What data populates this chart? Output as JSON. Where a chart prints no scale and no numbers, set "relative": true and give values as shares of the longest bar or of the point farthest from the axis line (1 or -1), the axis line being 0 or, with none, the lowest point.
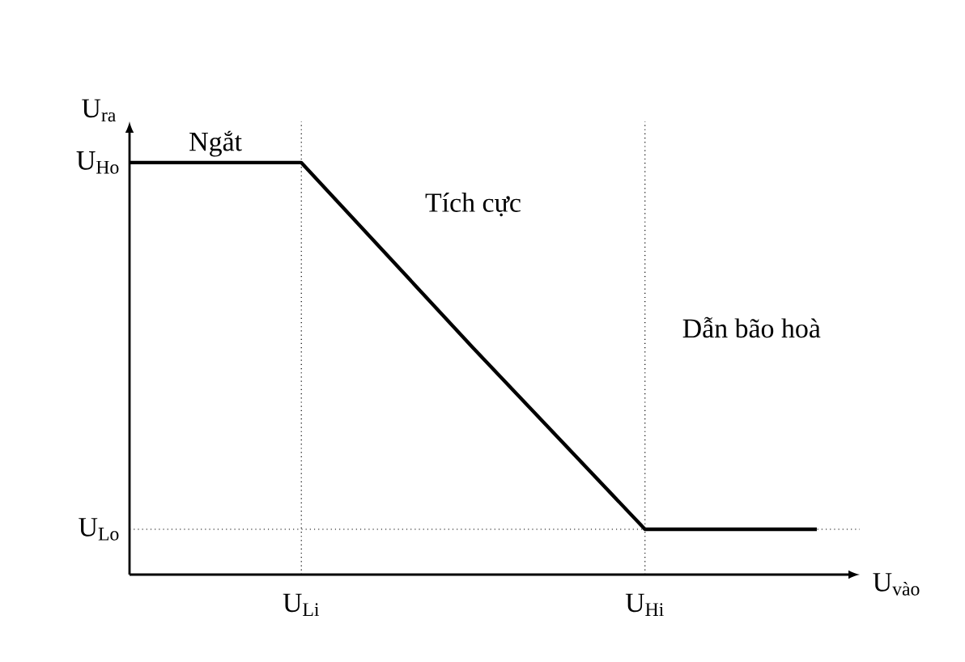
{
  "chart_data": {
    "type": "line",
    "relative": true,
    "xlabel": "U$_{vào}$",
    "ylabel": "U$_{ra}$",
    "categories": [
      null,
      "U$_{Li}$",
      null,
      "U$_{Hi}$",
      null
    ],
    "series": [
      {
        "color": "#000000",
        "values": [
          1,
          1,
          0.55,
          0.11,
          0.11
        ]
      }
    ],
    "ref_lines": [
      {
        "axis": "x",
        "value": "U$_{Li}$",
        "line_style": "dotted",
        "color": "#000000"
      },
      {
        "axis": "x",
        "value": "U$_{Hi}$",
        "line_style": "dotted",
        "color": "#000000"
      },
      {
        "axis": "y",
        "value": 0.11,
        "label": "U$_{Lo}$",
        "line_style": "dotted",
        "color": "#000000"
      }
    ],
    "annotations": [
      "Ngắt",
      "Tích cực",
      "Dẫn bão hoà",
      "U$_{Ho}$"
    ],
    "grid": false,
    "marker": "none",
    "line_style": "solid"
  }
}
